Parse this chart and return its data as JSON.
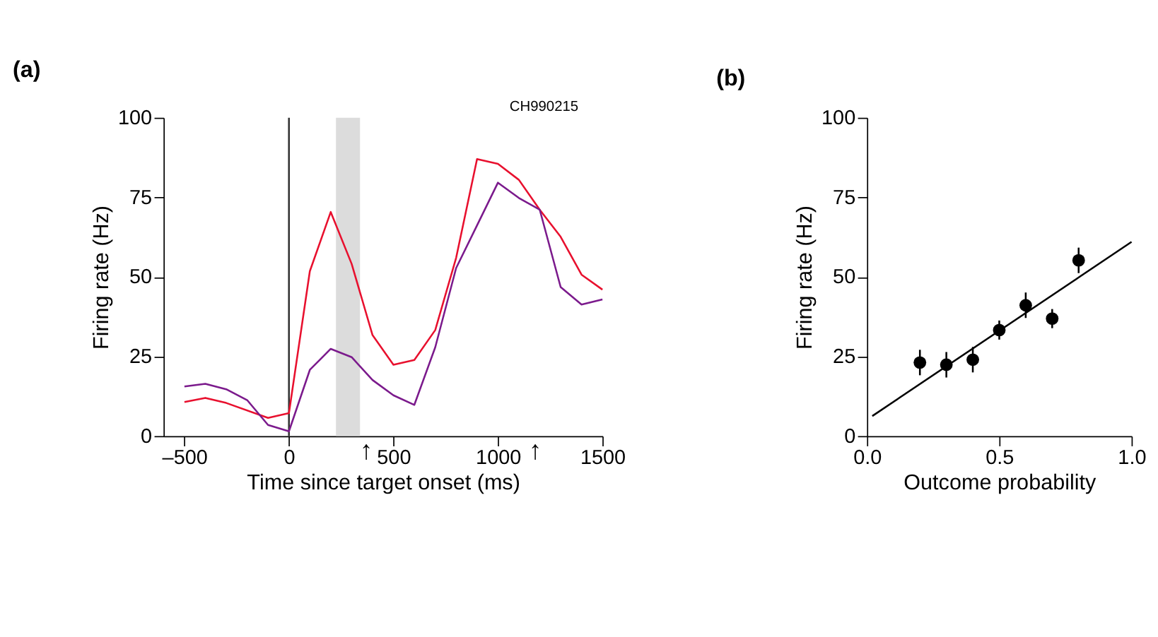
{
  "chart_data": [
    {
      "type": "line",
      "title": "(a)",
      "xlabel": "Time since target onset (ms)",
      "ylabel": "Firing rate (Hz)",
      "xlim": [
        -600,
        1500
      ],
      "xticks": [
        {
          "value": -500,
          "label": "–500"
        },
        0,
        500,
        1000,
        1500
      ],
      "ylim": [
        0,
        100
      ],
      "yticks": [
        0,
        25,
        50,
        75,
        100
      ],
      "grid": false,
      "series": [
        {
          "color": "#e8102e",
          "x": [
            -500,
            -400,
            -300,
            -100,
            0,
            100,
            200,
            300,
            400,
            500,
            600,
            700,
            800,
            900,
            1000,
            1100,
            1200,
            1300,
            1400,
            1500
          ],
          "values": [
            10.7,
            12.0,
            10.4,
            5.7,
            7.2,
            51.8,
            70.4,
            54.1,
            31.7,
            22.4,
            23.9,
            33.3,
            56.0,
            87.0,
            85.5,
            80.5,
            71.1,
            62.6,
            50.7,
            46.0
          ]
        },
        {
          "color": "#7b1a8c",
          "x": [
            -500,
            -400,
            -300,
            -200,
            -100,
            0,
            100,
            200,
            300,
            400,
            500,
            600,
            700,
            800,
            900,
            1000,
            1100,
            1200,
            1300,
            1400,
            1500
          ],
          "values": [
            15.6,
            16.4,
            14.7,
            11.3,
            3.5,
            1.5,
            20.8,
            27.4,
            24.8,
            17.6,
            12.8,
            9.8,
            27.9,
            52.8,
            66.2,
            79.6,
            74.8,
            71.1,
            46.8,
            41.3,
            42.9
          ]
        }
      ],
      "ref_lines": [
        {
          "axis": "x",
          "value": 0,
          "color": "#333333"
        }
      ],
      "bands": [
        {
          "axis": "x",
          "from": 225,
          "to": 340,
          "color": "#dcdcdc"
        }
      ],
      "annotations": [
        "CH990215",
        "↑",
        "↑"
      ]
    },
    {
      "type": "scatter",
      "title": "(b)",
      "xlabel": "Outcome probability",
      "ylabel": "Firing rate (Hz)",
      "xlim": [
        0,
        1
      ],
      "xticks": [
        {
          "value": 0,
          "label": "0.0"
        },
        0.5,
        {
          "value": 1,
          "label": "1.0"
        }
      ],
      "ylim": [
        0,
        100
      ],
      "yticks": [
        0,
        25,
        50,
        75,
        100
      ],
      "grid": false,
      "series": [
        {
          "color": "#000000",
          "marker": "circle",
          "x": [
            0.2,
            0.3,
            0.4,
            0.5,
            0.6,
            0.7,
            0.8
          ],
          "values": [
            23.1,
            22.4,
            24.0,
            33.3,
            41.1,
            36.9,
            55.2
          ],
          "errors": [
            4,
            4,
            4,
            3,
            4,
            3,
            4
          ]
        },
        {
          "type": "line",
          "marker": "none",
          "color": "#000000",
          "x": [
            0.02,
            1.0
          ],
          "values": [
            6.3,
            61.0
          ]
        }
      ]
    }
  ]
}
